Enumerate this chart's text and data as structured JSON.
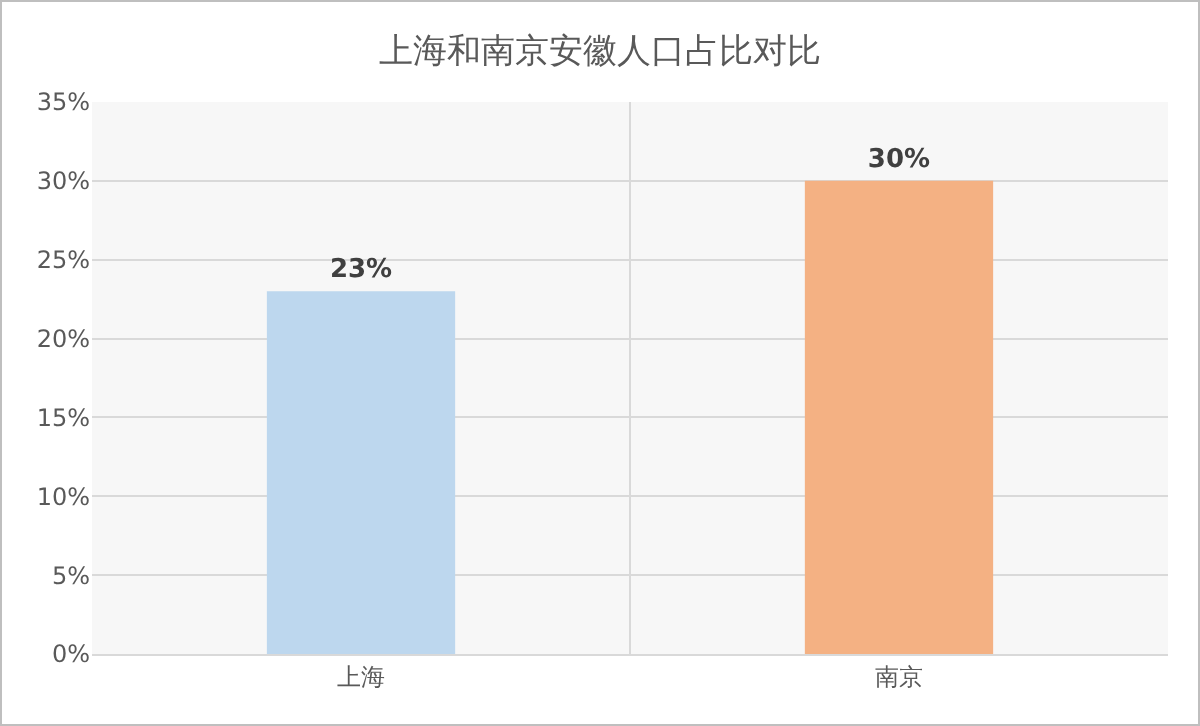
{
  "chart_data": {
    "type": "bar",
    "title": "上海和南京安徽人口占比对比",
    "categories": [
      "上海",
      "南京"
    ],
    "values": [
      23,
      30
    ],
    "colors": [
      "#bdd7ee",
      "#f4b183"
    ],
    "value_labels": [
      "23%",
      "30%"
    ],
    "ylim": [
      0,
      35
    ],
    "yticks": [
      {
        "value": 0,
        "label": "0%"
      },
      {
        "value": 5,
        "label": "5%"
      },
      {
        "value": 10,
        "label": "10%"
      },
      {
        "value": 15,
        "label": "15%"
      },
      {
        "value": 20,
        "label": "20%"
      },
      {
        "value": 25,
        "label": "25%"
      },
      {
        "value": 30,
        "label": "30%"
      },
      {
        "value": 35,
        "label": "35%"
      }
    ],
    "grid": true,
    "legend": false
  }
}
